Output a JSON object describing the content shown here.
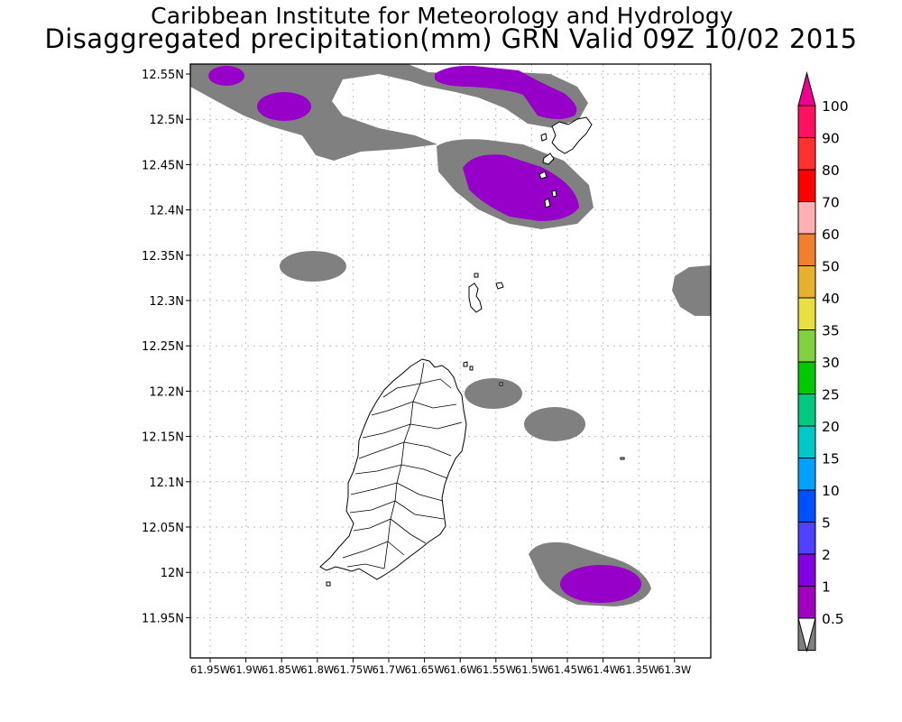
{
  "header": {
    "title_line1": "Caribbean Institute for Meteorology and Hydrology",
    "title_line2": "Disaggregated precipitation(mm) GRN Valid 09Z 10/02 2015"
  },
  "map": {
    "lat_labels": [
      "12.55N",
      "12.5N",
      "12.45N",
      "12.4N",
      "12.35N",
      "12.3N",
      "12.25N",
      "12.2N",
      "12.15N",
      "12.1N",
      "12.05N",
      "12N",
      "11.95N"
    ],
    "lon_labels": [
      "61.95W",
      "61.9W",
      "61.85W",
      "61.8W",
      "61.75W",
      "61.7W",
      "61.65W",
      "61.6W",
      "61.55W",
      "61.5W",
      "61.45W",
      "61.4W",
      "61.35W",
      "61.3W"
    ],
    "fill_colors": {
      "light": "#808080",
      "heavy": "#9600c8"
    }
  },
  "colorbar": {
    "labels": [
      "100",
      "90",
      "80",
      "70",
      "60",
      "50",
      "40",
      "35",
      "30",
      "25",
      "20",
      "15",
      "10",
      "5",
      "2",
      "1",
      "0.5"
    ],
    "colors": [
      "#ff1060",
      "#ff3030",
      "#ff0000",
      "#ffb0b0",
      "#f08030",
      "#e8b030",
      "#e8e040",
      "#80d040",
      "#00c800",
      "#00c880",
      "#00c8c8",
      "#00a0ff",
      "#0050ff",
      "#5040ff",
      "#8000e0",
      "#a000c0",
      "#808080"
    ],
    "top_triangle_color": "#f00090",
    "bottom_triangle_color": "#ffffff"
  }
}
